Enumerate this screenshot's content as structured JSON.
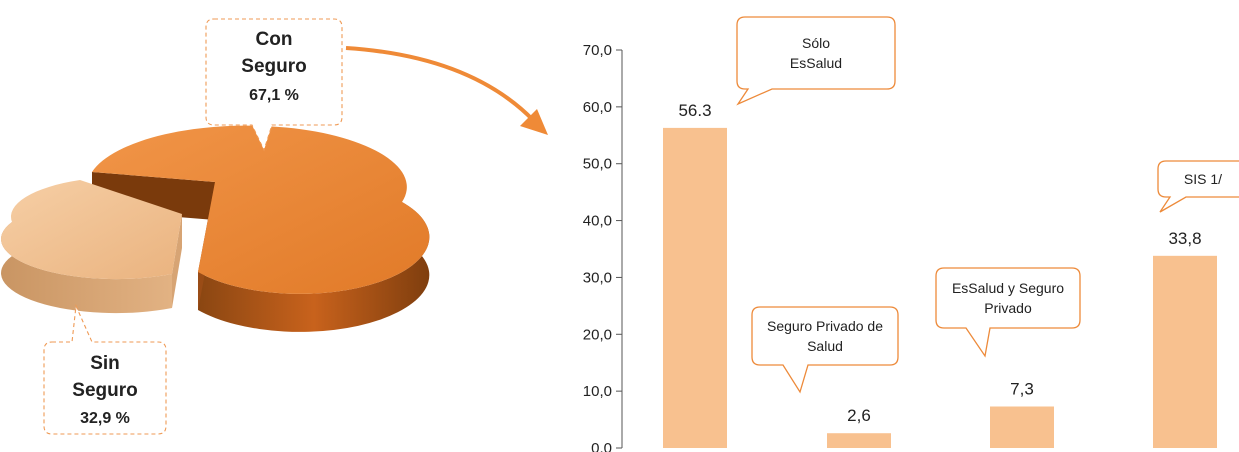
{
  "pie_chart": {
    "slices": [
      {
        "name": "Con Seguro",
        "label_lines": [
          "Con",
          "Seguro"
        ],
        "value_label": "67,1 %",
        "value": 67.1,
        "color": "#ef8a37"
      },
      {
        "name": "Sin Seguro",
        "label_lines": [
          "Sin",
          "Seguro"
        ],
        "value_label": "32,9 %",
        "value": 32.9,
        "color": "#f2c496"
      }
    ]
  },
  "chart_data": [
    {
      "type": "pie",
      "categories": [
        "Con Seguro",
        "Sin Seguro"
      ],
      "values": [
        67.1,
        32.9
      ],
      "units": "%"
    },
    {
      "type": "bar",
      "categories": [
        "Sólo EsSalud",
        "Seguro Privado de Salud",
        "EsSalud y Seguro Privado",
        "SIS 1/"
      ],
      "values": [
        56.3,
        2.6,
        7.3,
        33.8
      ],
      "value_labels": [
        "56.3",
        "2,6",
        "7,3",
        "33,8"
      ],
      "ylim": [
        0,
        70
      ],
      "y_ticks": [
        "0,0",
        "10,0",
        "20,0",
        "30,0",
        "40,0",
        "50,0",
        "60,0",
        "70,0"
      ],
      "bar_color": "#f8c18f",
      "callouts": [
        {
          "lines": [
            "Sólo",
            "EsSalud"
          ]
        },
        {
          "lines": [
            "Seguro Privado de",
            "Salud"
          ]
        },
        {
          "lines": [
            "EsSalud y Seguro",
            "Privado"
          ]
        },
        {
          "lines": [
            "SIS  1/"
          ]
        }
      ],
      "grid": false
    }
  ],
  "colors": {
    "accent": "#ed8a3a",
    "arrow": "#ef8a37"
  }
}
